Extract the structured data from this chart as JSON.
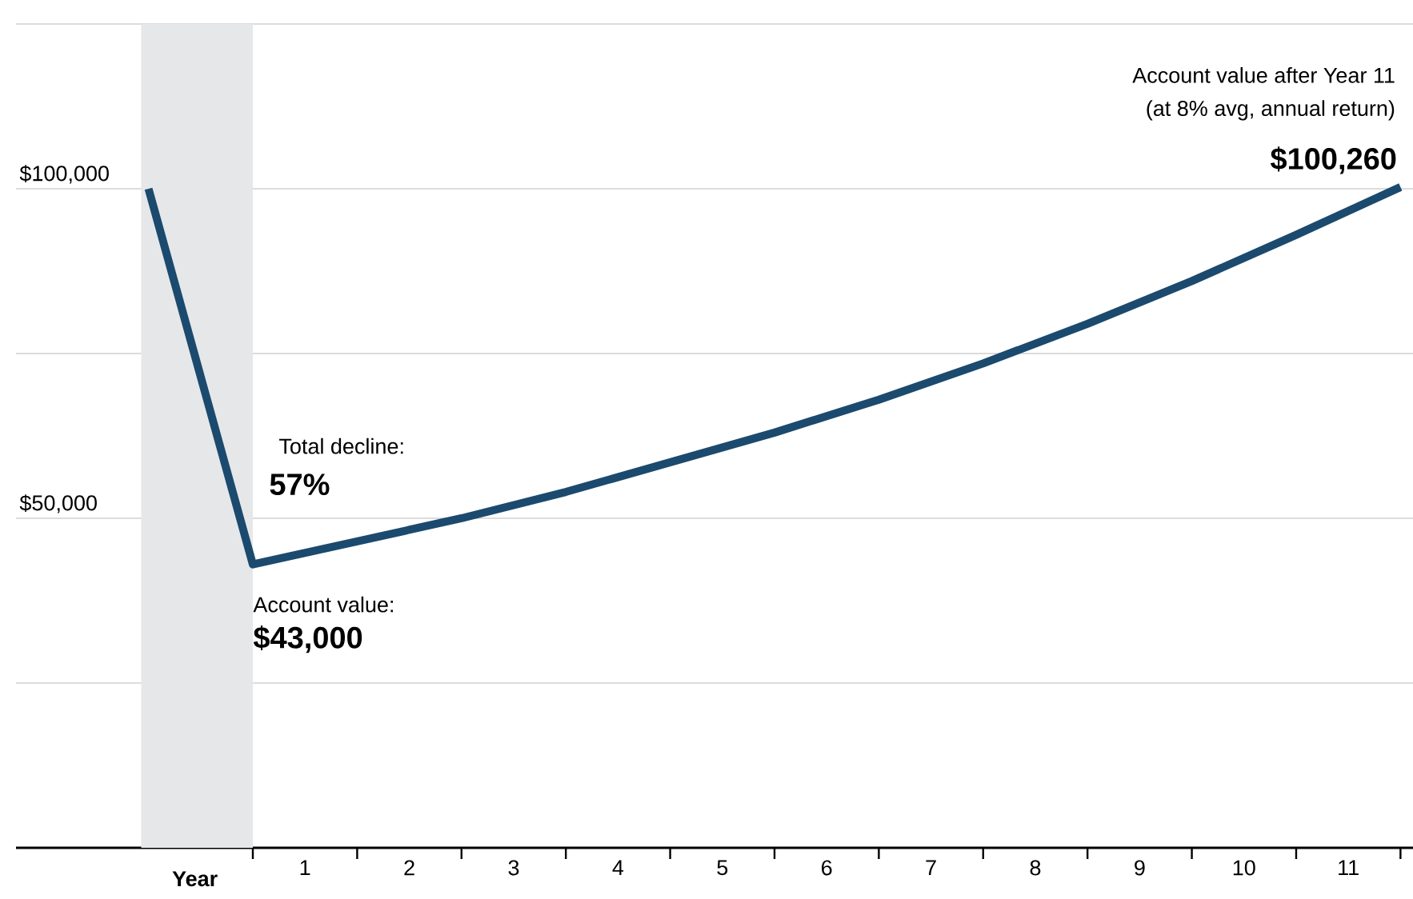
{
  "chart_data": {
    "type": "line",
    "xlabel": "Year",
    "x": [
      -1,
      0,
      1,
      2,
      3,
      4,
      5,
      6,
      7,
      8,
      9,
      10,
      11
    ],
    "series": [
      {
        "color": "#1b4a6e",
        "values": [
          100000,
          43000,
          46500,
          50000,
          54000,
          58500,
          63000,
          68000,
          73500,
          79500,
          86000,
          93000,
          100260
        ],
        "value_labels": [
          null,
          "$43,000",
          null,
          null,
          null,
          null,
          null,
          null,
          null,
          null,
          null,
          null,
          "$100,260"
        ]
      }
    ],
    "annotations": [
      "Total decline:",
      "57%",
      "Account value:",
      "Account value after Year 11",
      "(at 8% avg, annual return)"
    ],
    "bands": [
      {
        "axis": "x",
        "from": -1.07,
        "to": 0,
        "color": "#e6e7e8"
      }
    ],
    "xlim": [
      -2.27,
      11.12
    ],
    "xticks": [
      {
        "value": 0,
        "label": null
      },
      {
        "value": 1,
        "label": null
      },
      {
        "value": 2,
        "label": null
      },
      {
        "value": 3,
        "label": null
      },
      {
        "value": 4,
        "label": null
      },
      {
        "value": 5,
        "label": null
      },
      {
        "value": 6,
        "label": null
      },
      {
        "value": 7,
        "label": null
      },
      {
        "value": 8,
        "label": null
      },
      {
        "value": 9,
        "label": null
      },
      {
        "value": 10,
        "label": null
      },
      {
        "value": 11,
        "label": null
      },
      {
        "value": 0.5,
        "label": "1"
      },
      {
        "value": 1.5,
        "label": "2"
      },
      {
        "value": 2.5,
        "label": "3"
      },
      {
        "value": 3.5,
        "label": "4"
      },
      {
        "value": 4.5,
        "label": "5"
      },
      {
        "value": 5.5,
        "label": "6"
      },
      {
        "value": 6.5,
        "label": "7"
      },
      {
        "value": 7.5,
        "label": "8"
      },
      {
        "value": 8.5,
        "label": "9"
      },
      {
        "value": 9.5,
        "label": "10"
      },
      {
        "value": 10.5,
        "label": "11"
      }
    ],
    "ylim": [
      0,
      125000
    ],
    "yticks": [
      {
        "value": 25000,
        "label": null
      },
      {
        "value": 50000,
        "label": "$50,000"
      },
      {
        "value": 75000,
        "label": null
      },
      {
        "value": 100000,
        "label": "$100,000"
      },
      {
        "value": 125000,
        "label": null
      }
    ],
    "grid": "y",
    "line_style": "solid",
    "marker": "none"
  }
}
